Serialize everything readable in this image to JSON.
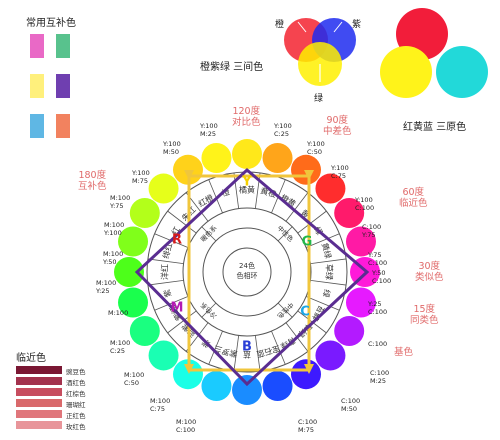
{
  "common_complementary": {
    "title": "常用互补色",
    "pairs": [
      [
        "#e969c6",
        "#58c28d"
      ],
      [
        "#fff07c",
        "#6f3fb0"
      ],
      [
        "#5fb7e4",
        "#f2825f"
      ]
    ]
  },
  "secondary_colors": {
    "title": "橙紫绿 三间色",
    "labels": {
      "orange": "橙",
      "purple": "紫",
      "green": "绿"
    },
    "colors": {
      "red": "#f4303c",
      "yellow": "#fff000",
      "blue": "#1f2bf0"
    }
  },
  "primary_colors": {
    "title": "红黄蓝 三原色",
    "colors": {
      "red": "#f21d3a",
      "yellow": "#fff31a",
      "cyan": "#22d9d9"
    }
  },
  "wheel": {
    "center_text": [
      "24色",
      "色相环"
    ],
    "circle_colors": [
      "#ffe81a",
      "#ffa51a",
      "#ff6b1a",
      "#ff2d2d",
      "#ff1a6b",
      "#ff1aa5",
      "#ff1ad9",
      "#e61aff",
      "#b31aff",
      "#7a1aff",
      "#3d1aff",
      "#1a4dff",
      "#1a8cff",
      "#1acbff",
      "#1affe6",
      "#1affb3",
      "#1aff80",
      "#1aff4d",
      "#4dff1a",
      "#80ff1a",
      "#b3ff1a",
      "#e6ff1a",
      "#ffd21a",
      "#fff31a"
    ],
    "ring_labels_outer": [
      "橘黄",
      "黄橙",
      "橙黄",
      "黄",
      "绿",
      "黄绿",
      "草绿",
      "绿",
      "苔藓",
      "翠绿",
      "青绿",
      "宝石蓝",
      "蓝",
      "紫罗兰",
      "紫",
      "蓝紫",
      "紫红",
      "紫",
      "洋红",
      "绯红",
      "红",
      "朱红",
      "红橙",
      "橙"
    ],
    "ring_labels_middle": [
      "暖色系",
      "中性色",
      "中性色",
      "冷色系"
    ],
    "big_letters": [
      "Y",
      "G",
      "C",
      "B",
      "M",
      "R"
    ],
    "colors": {
      "ring_fill": "#ffffff",
      "line": "#555555",
      "square": "#f0c63c",
      "diamond": "#5a2d91"
    }
  },
  "angle_labels": [
    {
      "key": "deg120",
      "text": "120度\n对比色"
    },
    {
      "key": "deg90",
      "text": "90度\n中差色"
    },
    {
      "key": "deg180",
      "text": "180度\n互补色"
    },
    {
      "key": "deg60",
      "text": "60度\n临近色"
    },
    {
      "key": "deg30",
      "text": "30度\n类似色"
    },
    {
      "key": "deg15",
      "text": "15度\n同类色"
    },
    {
      "key": "base",
      "text": "基色"
    }
  ],
  "cmy_labels": [
    "Y:100\nM:25",
    "Y:100\nC:25",
    "Y:100\nM:50",
    "Y:100\nC:50",
    "Y:100\nM:75",
    "Y:100\nC:75",
    "M:100\nY:75",
    "Y:100\nC:100",
    "M:100\nY:100",
    "C:100\nY:75",
    "M:100\nY:50",
    "Y:75\nC:100",
    "M:100\nY:25",
    "Y:50\nC:100",
    "M:100",
    "Y:25\nC:100",
    "M:100\nC:25",
    "C:100",
    "M:100\nC:50",
    "C:100\nM:25",
    "M:100\nC:75",
    "C:100\nM:50",
    "M:100\nC:100",
    "C:100\nM:75"
  ],
  "adjacent": {
    "title": "临近色",
    "items": [
      {
        "label": "豌豆色",
        "color": "#7a1733"
      },
      {
        "label": "酒红色",
        "color": "#a3324d"
      },
      {
        "label": "红棕色",
        "color": "#c74d5f"
      },
      {
        "label": "珊瑚红",
        "color": "#d9696b"
      },
      {
        "label": "正红色",
        "color": "#e0767b"
      },
      {
        "label": "玫红色",
        "color": "#e8959a"
      }
    ]
  }
}
